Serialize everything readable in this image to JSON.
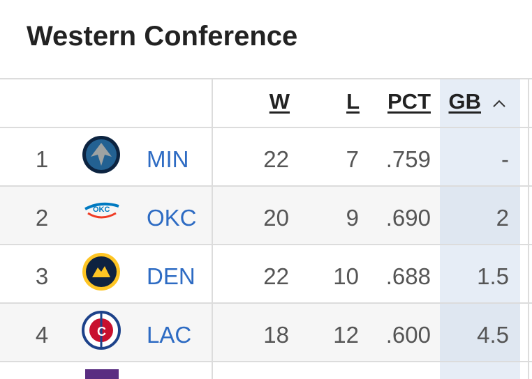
{
  "header": {
    "title": "Western Conference"
  },
  "table": {
    "columns": [
      "W",
      "L",
      "PCT",
      "GB"
    ],
    "rows": [
      [
        "1",
        "MIN",
        "22",
        "7",
        ".759",
        "-"
      ],
      [
        "2",
        "OKC",
        "20",
        "9",
        ".690",
        "2"
      ],
      [
        "3",
        "DEN",
        "22",
        "10",
        ".688",
        "1.5"
      ],
      [
        "4",
        "LAC",
        "18",
        "12",
        ".600",
        "4.5"
      ]
    ]
  }
}
